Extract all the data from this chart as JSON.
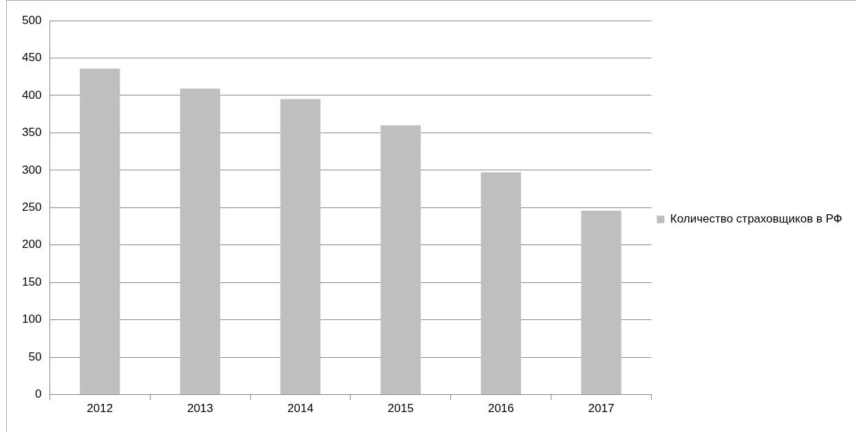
{
  "chart_data": {
    "type": "bar",
    "categories": [
      "2012",
      "2013",
      "2014",
      "2015",
      "2016",
      "2017"
    ],
    "series": [
      {
        "name": "Количество страховщиков в РФ",
        "color": "#bfbfbf",
        "values": [
          436,
          409,
          395,
          360,
          297,
          246
        ]
      }
    ],
    "ylim": [
      0,
      500
    ],
    "yticks": [
      0,
      50,
      100,
      150,
      200,
      250,
      300,
      350,
      400,
      450,
      500
    ],
    "grid": "y",
    "legend": "right"
  }
}
